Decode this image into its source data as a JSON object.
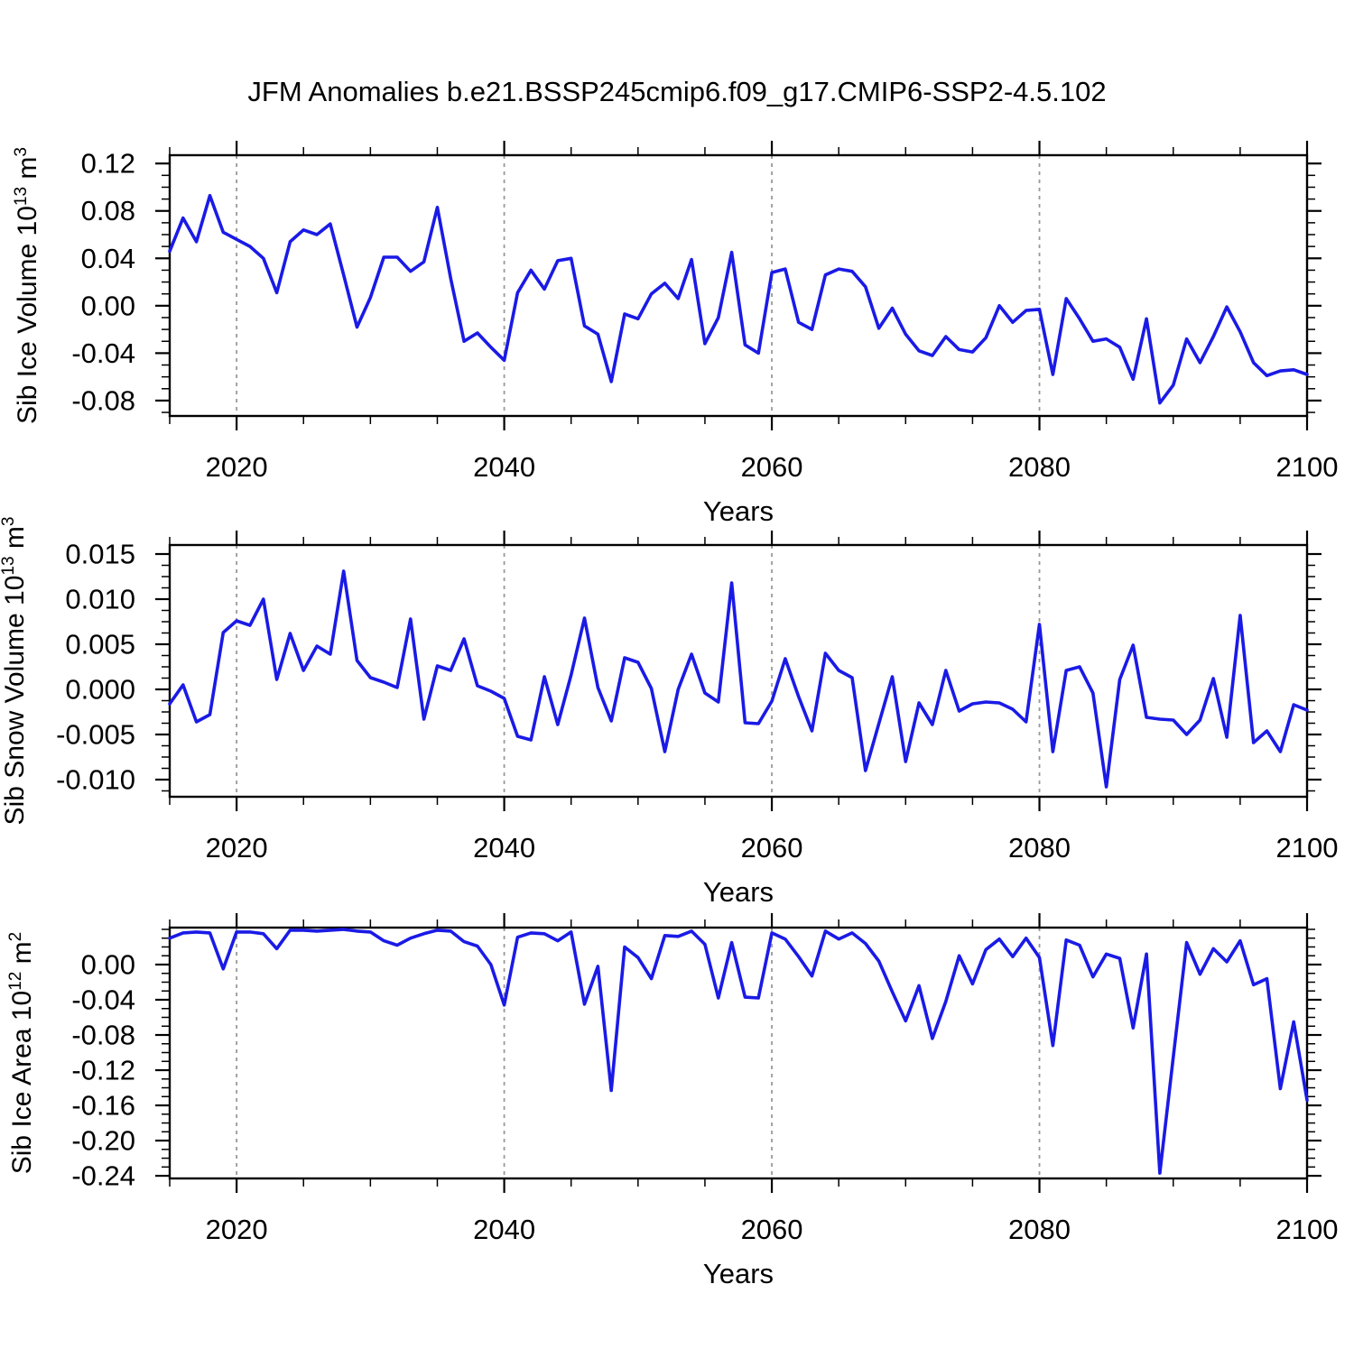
{
  "title": "JFM Anomalies b.e21.BSSP245cmip6.f09_g17.CMIP6-SSP2-4.5.102",
  "xlabel": "Years",
  "line_color": "#1a1ae6",
  "grid_color": "#999999",
  "axis_color": "#000000",
  "xlim": [
    2015,
    2100
  ],
  "x_ticks_major": [
    2020,
    2040,
    2060,
    2080,
    2100
  ],
  "x_minor_step": 5,
  "x_grid_years": [
    2020,
    2040,
    2060,
    2080
  ],
  "chart_data": [
    {
      "name": "sib-ice-volume",
      "type": "line",
      "ylabel_text": "Sib Ice Volume 10^13 m^3",
      "ylabel_segments": [
        {
          "t": "Sib Ice Volume 10"
        },
        {
          "t": "13",
          "sup": true
        },
        {
          "t": " m"
        },
        {
          "t": "3",
          "sup": true
        }
      ],
      "ylim": [
        -0.093,
        0.127
      ],
      "yticks": [
        0.12,
        0.08,
        0.04,
        0.0,
        -0.04,
        -0.08
      ],
      "ytick_labels": [
        "0.12",
        "0.08",
        "0.04",
        "0.00",
        "-0.04",
        "-0.08"
      ],
      "y_minor_step": 0.01,
      "x_start": 2015,
      "x_step": 1,
      "values": [
        0.046,
        0.074,
        0.054,
        0.093,
        0.062,
        0.056,
        0.05,
        0.04,
        0.011,
        0.054,
        0.064,
        0.06,
        0.069,
        0.026,
        -0.018,
        0.007,
        0.041,
        0.041,
        0.029,
        0.037,
        0.083,
        0.023,
        -0.03,
        -0.023,
        -0.035,
        -0.046,
        0.011,
        0.03,
        0.014,
        0.038,
        0.04,
        -0.017,
        -0.024,
        -0.064,
        -0.007,
        -0.011,
        0.01,
        0.019,
        0.006,
        0.039,
        -0.032,
        -0.01,
        0.045,
        -0.033,
        -0.04,
        0.028,
        0.031,
        -0.014,
        -0.02,
        0.026,
        0.031,
        0.029,
        0.016,
        -0.019,
        -0.002,
        -0.024,
        -0.038,
        -0.042,
        -0.026,
        -0.037,
        -0.039,
        -0.027,
        0.0,
        -0.014,
        -0.004,
        -0.003,
        -0.058,
        0.006,
        -0.011,
        -0.03,
        -0.028,
        -0.035,
        -0.062,
        -0.011,
        -0.082,
        -0.067,
        -0.028,
        -0.048,
        -0.026,
        -0.001,
        -0.022,
        -0.048,
        -0.059,
        -0.055,
        -0.054,
        -0.058
      ]
    },
    {
      "name": "sib-snow-volume",
      "type": "line",
      "ylabel_text": "Sib Snow Volume 10^13 m^3",
      "ylabel_segments": [
        {
          "t": "Sib Snow Volume 10"
        },
        {
          "t": "13",
          "sup": true
        },
        {
          "t": " m"
        },
        {
          "t": "3",
          "sup": true
        }
      ],
      "ylim": [
        -0.0119,
        0.016
      ],
      "yticks": [
        0.015,
        0.01,
        0.005,
        0.0,
        -0.005,
        -0.01
      ],
      "ytick_labels": [
        "0.015",
        "0.010",
        "0.005",
        "0.000",
        "-0.005",
        "-0.010"
      ],
      "y_minor_step": 0.00125,
      "x_start": 2015,
      "x_step": 1,
      "values": [
        -0.0016,
        0.0005,
        -0.0036,
        -0.0028,
        0.0063,
        0.0076,
        0.0071,
        0.01,
        0.0011,
        0.0062,
        0.0021,
        0.0048,
        0.0039,
        0.0131,
        0.0032,
        0.0013,
        0.0008,
        0.0002,
        0.0078,
        -0.0033,
        0.0026,
        0.0021,
        0.0056,
        0.0004,
        -0.0002,
        -0.001,
        -0.0052,
        -0.0056,
        0.0014,
        -0.0039,
        0.0016,
        0.0079,
        0.0002,
        -0.0035,
        0.0035,
        0.003,
        0.0001,
        -0.0069,
        0.0,
        0.0039,
        -0.0004,
        -0.0014,
        0.0118,
        -0.0037,
        -0.0038,
        -0.0013,
        0.0034,
        -0.0008,
        -0.0046,
        0.004,
        0.0021,
        0.0013,
        -0.009,
        -0.0038,
        0.0014,
        -0.008,
        -0.0015,
        -0.0039,
        0.0021,
        -0.0024,
        -0.0016,
        -0.0014,
        -0.0015,
        -0.0022,
        -0.0036,
        0.0072,
        -0.0069,
        0.0021,
        0.0025,
        -0.0004,
        -0.0108,
        0.0011,
        0.0049,
        -0.0031,
        -0.0033,
        -0.0034,
        -0.005,
        -0.0034,
        0.0012,
        -0.0053,
        0.0082,
        -0.0059,
        -0.0046,
        -0.0069,
        -0.0017,
        -0.0023
      ]
    },
    {
      "name": "sib-ice-area",
      "type": "line",
      "ylabel_text": "Sib Ice Area 10^12 m^2",
      "ylabel_segments": [
        {
          "t": "Sib Ice Area 10"
        },
        {
          "t": "12",
          "sup": true
        },
        {
          "t": " m"
        },
        {
          "t": "2",
          "sup": true
        }
      ],
      "ylim": [
        -0.243,
        0.042
      ],
      "yticks": [
        0.0,
        -0.04,
        -0.08,
        -0.12,
        -0.16,
        -0.2,
        -0.24
      ],
      "ytick_labels": [
        "0.00",
        "-0.04",
        "-0.08",
        "-0.12",
        "-0.16",
        "-0.20",
        "-0.24"
      ],
      "y_minor_step": 0.01,
      "x_start": 2015,
      "x_step": 1,
      "values": [
        0.03,
        0.036,
        0.037,
        0.036,
        -0.005,
        0.037,
        0.037,
        0.035,
        0.018,
        0.039,
        0.039,
        0.038,
        0.039,
        0.04,
        0.038,
        0.037,
        0.027,
        0.022,
        0.03,
        0.035,
        0.039,
        0.038,
        0.026,
        0.021,
        0.0,
        -0.046,
        0.031,
        0.036,
        0.035,
        0.027,
        0.037,
        -0.045,
        -0.002,
        -0.143,
        0.02,
        0.008,
        -0.016,
        0.033,
        0.032,
        0.038,
        0.023,
        -0.038,
        0.025,
        -0.037,
        -0.038,
        0.036,
        0.029,
        0.009,
        -0.013,
        0.038,
        0.029,
        0.036,
        0.024,
        0.004,
        -0.031,
        -0.064,
        -0.024,
        -0.084,
        -0.042,
        0.01,
        -0.022,
        0.017,
        0.029,
        0.009,
        0.03,
        0.008,
        -0.092,
        0.028,
        0.022,
        -0.014,
        0.012,
        0.007,
        -0.072,
        0.012,
        -0.237,
        -0.105,
        0.025,
        -0.011,
        0.018,
        0.003,
        0.027,
        -0.023,
        -0.016,
        -0.141,
        -0.065,
        -0.154
      ]
    }
  ]
}
